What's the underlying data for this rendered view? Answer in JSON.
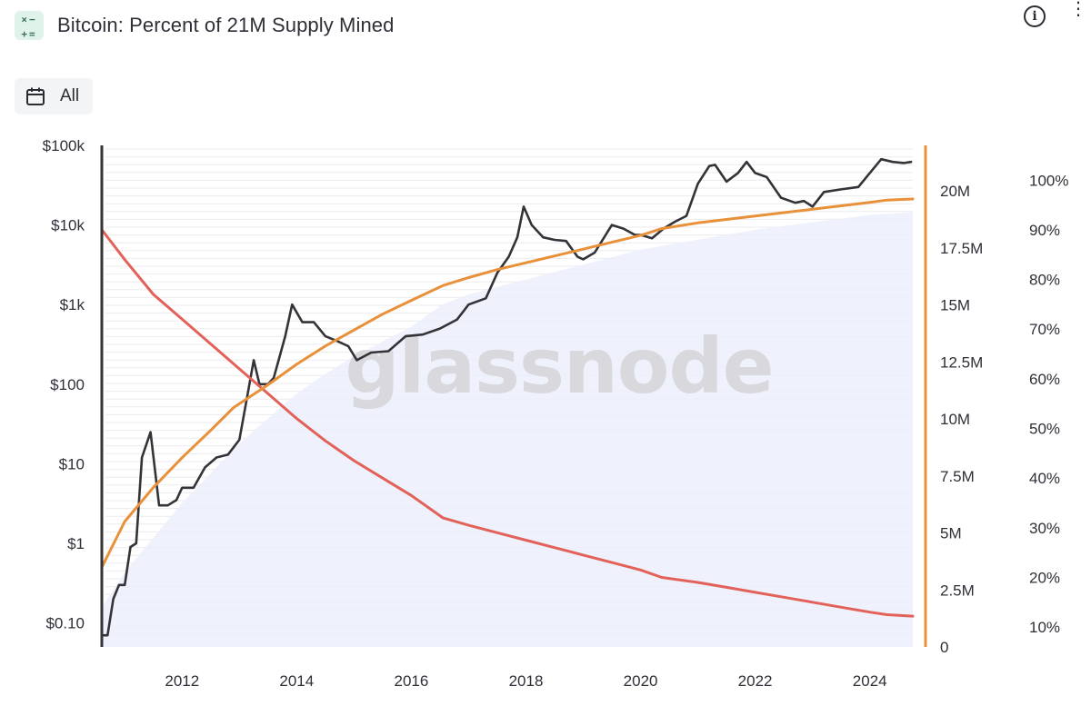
{
  "header": {
    "title": "Bitcoin: Percent of 21M Supply Mined",
    "app_icon_top": "×−",
    "app_icon_bottom": "+=",
    "info_glyph": "i",
    "more_glyph": "⋮"
  },
  "range_selector": {
    "label": "All",
    "icon": "calendar-icon"
  },
  "watermark": "glassnode",
  "colors": {
    "price": "#333338",
    "supply": "#e8913a",
    "issuance": "#e2625a",
    "percent_area": "#eceefb",
    "grid": "#ebebef",
    "left_axis": "#333338",
    "right_axis": "#e8913a"
  },
  "chart_data": {
    "type": "line",
    "title": "Bitcoin: Percent of 21M Supply Mined",
    "x_ticks": [
      "2012",
      "2014",
      "2016",
      "2018",
      "2020",
      "2022",
      "2024"
    ],
    "x_range": [
      2010.6,
      2024.75
    ],
    "y_left": {
      "scale": "log",
      "ticks": [
        "$0.10",
        "$1",
        "$10",
        "$100",
        "$1k",
        "$10k",
        "$100k"
      ],
      "range": [
        0.05,
        100000
      ]
    },
    "y_supply": {
      "ticks": [
        "0",
        "2.5M",
        "5M",
        "7.5M",
        "10M",
        "12.5M",
        "15M",
        "17.5M",
        "20M"
      ],
      "range": [
        0,
        22000000
      ]
    },
    "y_percent": {
      "ticks": [
        "10%",
        "20%",
        "30%",
        "40%",
        "50%",
        "60%",
        "70%",
        "80%",
        "90%",
        "100%"
      ],
      "range": [
        6,
        107
      ]
    },
    "series": [
      {
        "axis": "left",
        "x": [
          2010.6,
          2010.7,
          2010.8,
          2010.9,
          2011.0,
          2011.1,
          2011.2,
          2011.3,
          2011.45,
          2011.6,
          2011.75,
          2011.9,
          2012.0,
          2012.2,
          2012.4,
          2012.6,
          2012.8,
          2013.0,
          2013.1,
          2013.25,
          2013.35,
          2013.5,
          2013.6,
          2013.8,
          2013.92,
          2014.1,
          2014.3,
          2014.5,
          2014.7,
          2014.9,
          2015.05,
          2015.3,
          2015.6,
          2015.9,
          2016.2,
          2016.5,
          2016.8,
          2017.0,
          2017.3,
          2017.5,
          2017.7,
          2017.85,
          2017.96,
          2018.1,
          2018.3,
          2018.5,
          2018.7,
          2018.9,
          2019.0,
          2019.2,
          2019.5,
          2019.7,
          2019.9,
          2020.0,
          2020.2,
          2020.4,
          2020.6,
          2020.8,
          2021.0,
          2021.2,
          2021.3,
          2021.5,
          2021.7,
          2021.85,
          2022.0,
          2022.2,
          2022.45,
          2022.7,
          2022.85,
          2023.0,
          2023.2,
          2023.5,
          2023.8,
          2024.0,
          2024.2,
          2024.4,
          2024.6,
          2024.72
        ],
        "y": [
          0.07,
          0.07,
          0.2,
          0.3,
          0.3,
          0.9,
          1,
          12,
          25,
          3,
          3,
          3.5,
          5,
          5,
          9,
          12,
          13,
          20,
          50,
          200,
          100,
          100,
          120,
          400,
          1000,
          600,
          600,
          400,
          350,
          300,
          200,
          250,
          260,
          400,
          420,
          500,
          650,
          1000,
          1200,
          2500,
          4000,
          7000,
          17000,
          10000,
          7000,
          6500,
          6300,
          4000,
          3700,
          4500,
          10000,
          9000,
          7500,
          7500,
          6800,
          9000,
          11000,
          13000,
          33000,
          55000,
          57000,
          35000,
          45000,
          62000,
          45000,
          40000,
          22000,
          19000,
          20000,
          17000,
          26000,
          28000,
          30000,
          45000,
          67000,
          62000,
          60000,
          62000
        ]
      },
      {
        "axis": "supply",
        "x": [
          2010.6,
          2011.0,
          2011.5,
          2012.0,
          2012.5,
          2012.9,
          2013.5,
          2014.0,
          2014.5,
          2015.0,
          2015.5,
          2016.0,
          2016.55,
          2017.0,
          2017.5,
          2018.0,
          2018.5,
          2019.0,
          2019.5,
          2020.0,
          2020.37,
          2021.0,
          2021.5,
          2022.0,
          2022.5,
          2023.0,
          2023.5,
          2024.0,
          2024.3,
          2024.75
        ],
        "y": [
          3500000,
          5500000,
          7000000,
          8300000,
          9500000,
          10500000,
          11500000,
          12400000,
          13200000,
          13900000,
          14600000,
          15200000,
          15850000,
          16200000,
          16550000,
          16850000,
          17150000,
          17450000,
          17750000,
          18050000,
          18350000,
          18600000,
          18750000,
          18900000,
          19050000,
          19200000,
          19350000,
          19500000,
          19600000,
          19650000
        ]
      },
      {
        "axis": "percent",
        "x": [
          2010.6,
          2011.0,
          2011.5,
          2012.0,
          2012.5,
          2012.9,
          2013.5,
          2014.0,
          2014.5,
          2015.0,
          2015.5,
          2016.0,
          2016.55,
          2017.0,
          2017.5,
          2018.0,
          2018.5,
          2019.0,
          2019.5,
          2020.0,
          2020.37,
          2021.0,
          2021.5,
          2022.0,
          2022.5,
          2023.0,
          2023.5,
          2024.0,
          2024.3,
          2024.75
        ],
        "y": [
          90,
          84,
          77,
          72,
          67,
          63,
          57,
          52,
          47.5,
          43.5,
          40,
          36.5,
          32,
          30.5,
          29,
          27.5,
          26,
          24.5,
          23,
          21.5,
          20,
          19,
          18,
          17,
          16,
          15,
          14,
          13,
          12.5,
          12.2
        ]
      },
      {
        "axis": "percent",
        "x": [
          2010.6,
          2011.0,
          2011.5,
          2012.0,
          2012.5,
          2013.0,
          2013.5,
          2014.0,
          2014.5,
          2015.0,
          2015.5,
          2016.0,
          2016.55,
          2017.0,
          2018.0,
          2019.0,
          2020.0,
          2021.0,
          2022.0,
          2023.0,
          2024.0,
          2024.75
        ],
        "y": [
          14,
          21,
          28,
          35,
          41,
          47,
          52,
          57,
          61,
          64.5,
          67.5,
          70.5,
          75,
          77,
          80,
          83,
          86,
          88,
          90,
          91.5,
          93,
          93.5
        ]
      }
    ]
  }
}
